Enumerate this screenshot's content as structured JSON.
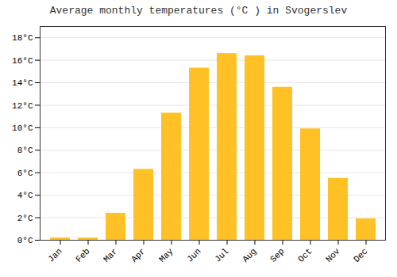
{
  "chart_data": {
    "type": "bar",
    "title": "Average monthly temperatures (°C ) in Svogerslev",
    "categories": [
      "Jan",
      "Feb",
      "Mar",
      "Apr",
      "May",
      "Jun",
      "Jul",
      "Aug",
      "Sep",
      "Oct",
      "Nov",
      "Dec"
    ],
    "values": [
      0.2,
      0.2,
      2.4,
      6.3,
      11.3,
      15.3,
      16.6,
      16.4,
      13.6,
      9.9,
      5.5,
      1.9
    ],
    "color": "#FFC125",
    "ylim": [
      0,
      19
    ],
    "yticks": [
      {
        "value": 0,
        "label": "0°C"
      },
      {
        "value": 2,
        "label": "2°C"
      },
      {
        "value": 4,
        "label": "4°C"
      },
      {
        "value": 6,
        "label": "6°C"
      },
      {
        "value": 8,
        "label": "8°C"
      },
      {
        "value": 10,
        "label": "10°C"
      },
      {
        "value": 12,
        "label": "12°C"
      },
      {
        "value": 14,
        "label": "14°C"
      },
      {
        "value": 16,
        "label": "16°C"
      },
      {
        "value": 18,
        "label": "18°C"
      }
    ],
    "grid": true
  }
}
